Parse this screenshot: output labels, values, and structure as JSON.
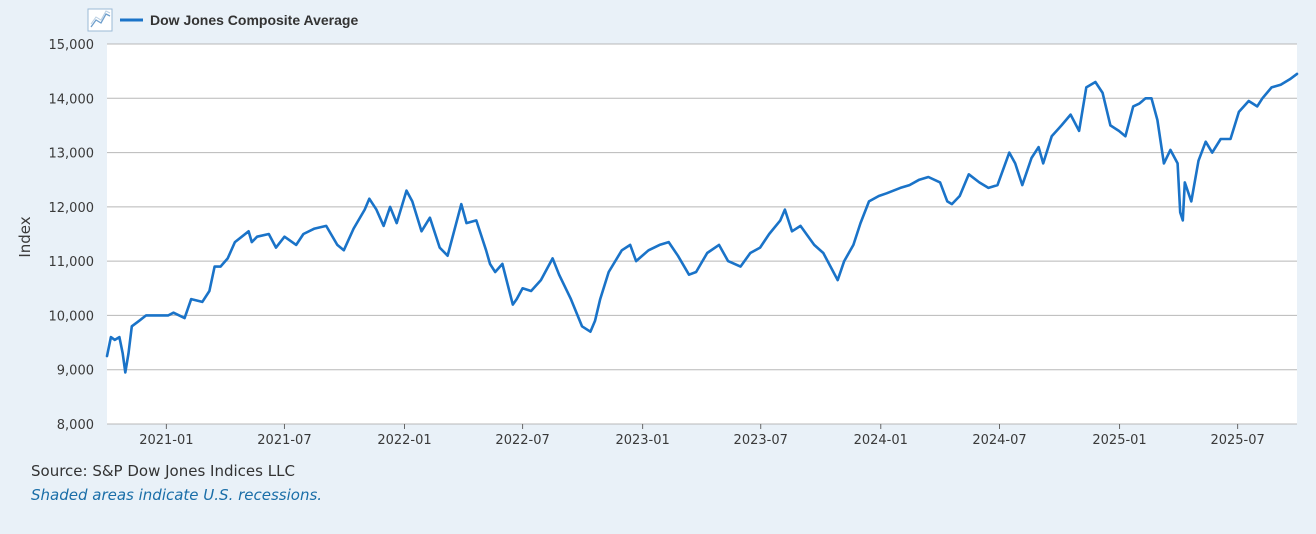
{
  "chart_data": {
    "type": "line",
    "title": "",
    "xlabel": "",
    "ylabel": "Index",
    "ylim": [
      8000,
      15000
    ],
    "xlim": [
      "2020-10-02",
      "2025-09-30"
    ],
    "yticks": [
      "8,000",
      "9,000",
      "10,000",
      "11,000",
      "12,000",
      "13,000",
      "14,000",
      "15,000"
    ],
    "ytick_values": [
      8000,
      9000,
      10000,
      11000,
      12000,
      13000,
      14000,
      15000
    ],
    "xticks": [
      "2021-01",
      "2021-07",
      "2022-01",
      "2022-07",
      "2023-01",
      "2023-07",
      "2024-01",
      "2024-07",
      "2025-01",
      "2025-07"
    ],
    "xtick_dates": [
      "2021-01-01",
      "2021-07-01",
      "2022-01-01",
      "2022-07-01",
      "2023-01-01",
      "2023-07-01",
      "2024-01-01",
      "2024-07-01",
      "2025-01-01",
      "2025-07-01"
    ],
    "grid": true,
    "legend_position": "top-left",
    "series": [
      {
        "name": "Dow Jones Composite Average",
        "color": "#1a73c8",
        "points": [
          [
            "2020-10-02",
            9250
          ],
          [
            "2020-10-08",
            9600
          ],
          [
            "2020-10-14",
            9550
          ],
          [
            "2020-10-21",
            9600
          ],
          [
            "2020-10-26",
            9300
          ],
          [
            "2020-10-30",
            8950
          ],
          [
            "2020-11-04",
            9300
          ],
          [
            "2020-11-09",
            9800
          ],
          [
            "2020-11-20",
            9900
          ],
          [
            "2020-12-01",
            10000
          ],
          [
            "2020-12-15",
            10000
          ],
          [
            "2021-01-04",
            10000
          ],
          [
            "2021-01-12",
            10050
          ],
          [
            "2021-01-29",
            9950
          ],
          [
            "2021-02-08",
            10300
          ],
          [
            "2021-02-25",
            10250
          ],
          [
            "2021-03-08",
            10450
          ],
          [
            "2021-03-16",
            10900
          ],
          [
            "2021-03-25",
            10900
          ],
          [
            "2021-04-05",
            11050
          ],
          [
            "2021-04-16",
            11350
          ],
          [
            "2021-05-07",
            11550
          ],
          [
            "2021-05-12",
            11350
          ],
          [
            "2021-05-20",
            11450
          ],
          [
            "2021-06-07",
            11500
          ],
          [
            "2021-06-18",
            11250
          ],
          [
            "2021-07-01",
            11450
          ],
          [
            "2021-07-19",
            11300
          ],
          [
            "2021-07-30",
            11500
          ],
          [
            "2021-08-16",
            11600
          ],
          [
            "2021-09-03",
            11650
          ],
          [
            "2021-09-20",
            11300
          ],
          [
            "2021-09-30",
            11200
          ],
          [
            "2021-10-15",
            11600
          ],
          [
            "2021-11-01",
            11950
          ],
          [
            "2021-11-08",
            12150
          ],
          [
            "2021-11-19",
            11950
          ],
          [
            "2021-11-30",
            11650
          ],
          [
            "2021-12-10",
            12000
          ],
          [
            "2021-12-20",
            11700
          ],
          [
            "2022-01-04",
            12300
          ],
          [
            "2022-01-13",
            12100
          ],
          [
            "2022-01-27",
            11550
          ],
          [
            "2022-02-09",
            11800
          ],
          [
            "2022-02-24",
            11250
          ],
          [
            "2022-03-08",
            11100
          ],
          [
            "2022-03-29",
            12050
          ],
          [
            "2022-04-06",
            11700
          ],
          [
            "2022-04-21",
            11750
          ],
          [
            "2022-05-06",
            11200
          ],
          [
            "2022-05-12",
            10950
          ],
          [
            "2022-05-20",
            10800
          ],
          [
            "2022-05-31",
            10950
          ],
          [
            "2022-06-16",
            10200
          ],
          [
            "2022-06-22",
            10300
          ],
          [
            "2022-07-01",
            10500
          ],
          [
            "2022-07-14",
            10450
          ],
          [
            "2022-07-29",
            10650
          ],
          [
            "2022-08-16",
            11050
          ],
          [
            "2022-08-26",
            10750
          ],
          [
            "2022-09-13",
            10300
          ],
          [
            "2022-09-30",
            9800
          ],
          [
            "2022-10-13",
            9700
          ],
          [
            "2022-10-20",
            9900
          ],
          [
            "2022-10-28",
            10300
          ],
          [
            "2022-11-10",
            10800
          ],
          [
            "2022-11-30",
            11200
          ],
          [
            "2022-12-13",
            11300
          ],
          [
            "2022-12-22",
            11000
          ],
          [
            "2023-01-10",
            11200
          ],
          [
            "2023-01-27",
            11300
          ],
          [
            "2023-02-10",
            11350
          ],
          [
            "2023-02-24",
            11100
          ],
          [
            "2023-03-13",
            10750
          ],
          [
            "2023-03-24",
            10800
          ],
          [
            "2023-04-10",
            11150
          ],
          [
            "2023-04-28",
            11300
          ],
          [
            "2023-05-12",
            11000
          ],
          [
            "2023-05-31",
            10900
          ],
          [
            "2023-06-15",
            11150
          ],
          [
            "2023-06-30",
            11250
          ],
          [
            "2023-07-14",
            11500
          ],
          [
            "2023-07-31",
            11750
          ],
          [
            "2023-08-07",
            11950
          ],
          [
            "2023-08-18",
            11550
          ],
          [
            "2023-08-31",
            11650
          ],
          [
            "2023-09-21",
            11300
          ],
          [
            "2023-10-05",
            11150
          ],
          [
            "2023-10-27",
            10650
          ],
          [
            "2023-11-06",
            11000
          ],
          [
            "2023-11-20",
            11300
          ],
          [
            "2023-12-01",
            11700
          ],
          [
            "2023-12-14",
            12100
          ],
          [
            "2023-12-29",
            12200
          ],
          [
            "2024-01-10",
            12250
          ],
          [
            "2024-01-31",
            12350
          ],
          [
            "2024-02-14",
            12400
          ],
          [
            "2024-02-29",
            12500
          ],
          [
            "2024-03-14",
            12550
          ],
          [
            "2024-04-01",
            12450
          ],
          [
            "2024-04-12",
            12100
          ],
          [
            "2024-04-19",
            12050
          ],
          [
            "2024-05-01",
            12200
          ],
          [
            "2024-05-15",
            12600
          ],
          [
            "2024-05-31",
            12450
          ],
          [
            "2024-06-14",
            12350
          ],
          [
            "2024-06-28",
            12400
          ],
          [
            "2024-07-16",
            13000
          ],
          [
            "2024-07-25",
            12800
          ],
          [
            "2024-08-05",
            12400
          ],
          [
            "2024-08-19",
            12900
          ],
          [
            "2024-08-30",
            13100
          ],
          [
            "2024-09-06",
            12800
          ],
          [
            "2024-09-19",
            13300
          ],
          [
            "2024-10-04",
            13500
          ],
          [
            "2024-10-18",
            13700
          ],
          [
            "2024-10-31",
            13400
          ],
          [
            "2024-11-11",
            14200
          ],
          [
            "2024-11-25",
            14300
          ],
          [
            "2024-12-06",
            14100
          ],
          [
            "2024-12-18",
            13500
          ],
          [
            "2024-12-31",
            13400
          ],
          [
            "2025-01-10",
            13300
          ],
          [
            "2025-01-22",
            13850
          ],
          [
            "2025-01-31",
            13900
          ],
          [
            "2025-02-10",
            14000
          ],
          [
            "2025-02-19",
            14000
          ],
          [
            "2025-02-28",
            13600
          ],
          [
            "2025-03-10",
            12800
          ],
          [
            "2025-03-20",
            13050
          ],
          [
            "2025-03-31",
            12800
          ],
          [
            "2025-04-04",
            11900
          ],
          [
            "2025-04-08",
            11750
          ],
          [
            "2025-04-11",
            12450
          ],
          [
            "2025-04-21",
            12100
          ],
          [
            "2025-05-02",
            12850
          ],
          [
            "2025-05-13",
            13200
          ],
          [
            "2025-05-23",
            13000
          ],
          [
            "2025-06-05",
            13250
          ],
          [
            "2025-06-20",
            13250
          ],
          [
            "2025-07-03",
            13750
          ],
          [
            "2025-07-18",
            13950
          ],
          [
            "2025-07-31",
            13850
          ],
          [
            "2025-08-08",
            14000
          ],
          [
            "2025-08-22",
            14200
          ],
          [
            "2025-09-05",
            14250
          ],
          [
            "2025-09-19",
            14350
          ],
          [
            "2025-09-30",
            14450
          ]
        ]
      }
    ]
  },
  "legend": {
    "series_label": "Dow Jones Composite Average",
    "icon": "line-chart-icon"
  },
  "footer": {
    "source": "Source: S&P Dow Jones Indices LLC",
    "note": "Shaded areas indicate U.S. recessions."
  }
}
